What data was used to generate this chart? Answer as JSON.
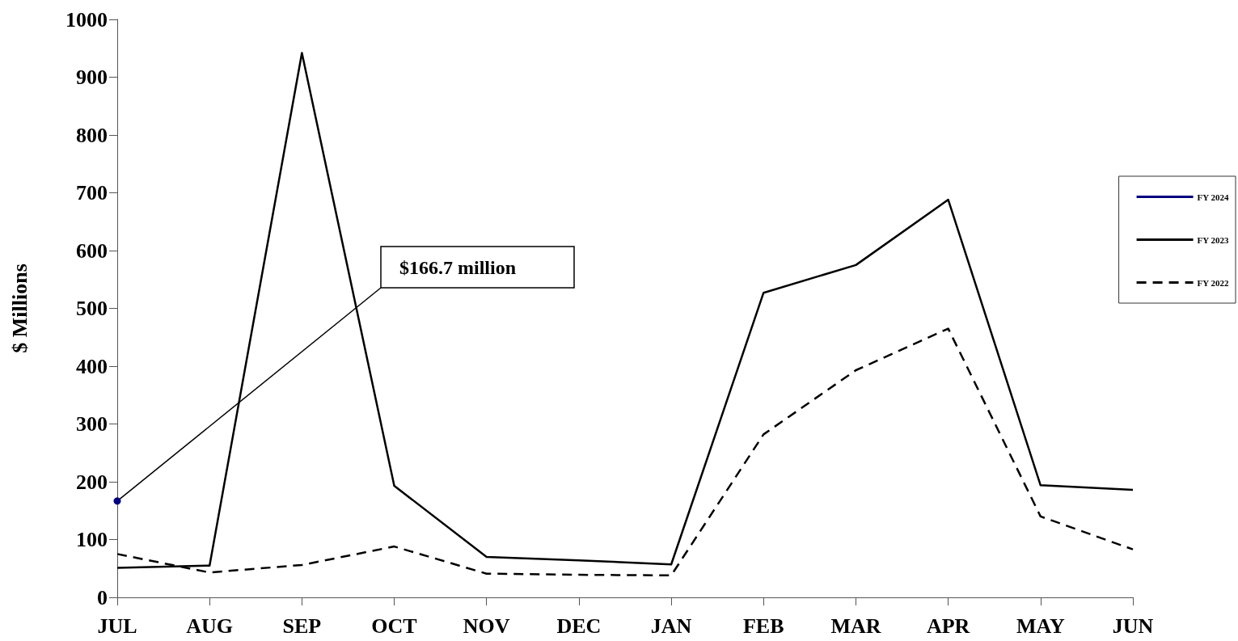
{
  "chart_data": {
    "type": "line",
    "ylabel": "$ Millions",
    "categories": [
      "JUL",
      "AUG",
      "SEP",
      "OCT",
      "NOV",
      "DEC",
      "JAN",
      "FEB",
      "MAR",
      "APR",
      "MAY",
      "JUN"
    ],
    "series": [
      {
        "name": "FY 2024",
        "color": "#000080",
        "line_style": "solid",
        "marker": "circle",
        "values": [
          166.7,
          null,
          null,
          null,
          null,
          null,
          null,
          null,
          null,
          null,
          null,
          null
        ]
      },
      {
        "name": "FY 2023",
        "color": "#000000",
        "line_style": "solid",
        "values": [
          51,
          55,
          942,
          193,
          70,
          64,
          57,
          527,
          575,
          688,
          194,
          186
        ]
      },
      {
        "name": "FY 2022",
        "color": "#000000",
        "line_style": "dashed",
        "values": [
          75,
          43,
          56,
          88,
          41,
          39,
          38,
          282,
          393,
          465,
          140,
          83
        ]
      }
    ],
    "ylim": [
      0,
      1000
    ],
    "yticks": [
      0,
      100,
      200,
      300,
      400,
      500,
      600,
      700,
      800,
      900,
      1000
    ],
    "legend": "right",
    "marker": "none",
    "annotations": [
      {
        "text": "$166.7 million",
        "x": "JUL",
        "y": 166.7
      }
    ]
  }
}
